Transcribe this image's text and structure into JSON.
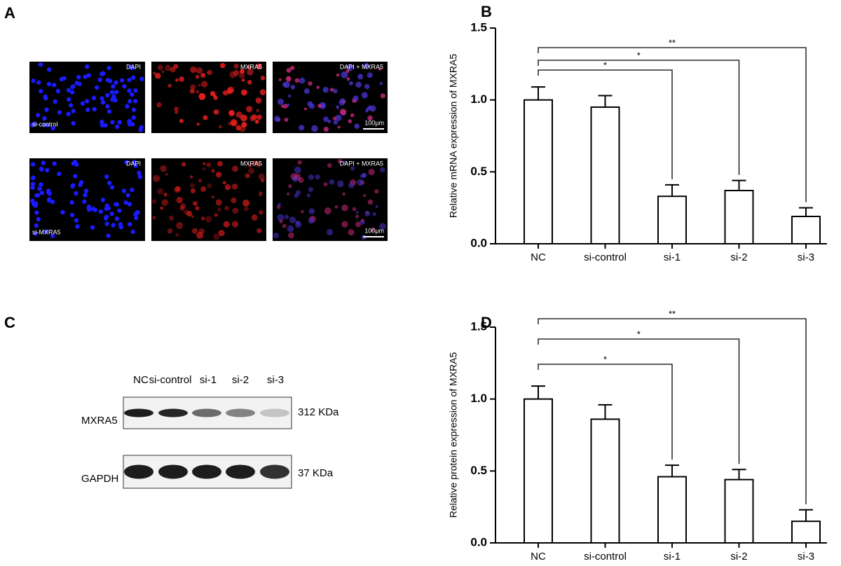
{
  "panel_a": {
    "label": "A",
    "columns": [
      "DAPI",
      "MXRA5",
      "DAPI + MXRA5"
    ],
    "rows": [
      "si-control",
      "si-MXRA5"
    ],
    "scale": "100µm"
  },
  "panel_c": {
    "label": "C",
    "lanes": [
      "NC",
      "si-control",
      "si-1",
      "si-2",
      "si-3"
    ],
    "proteins": [
      {
        "name": "MXRA5",
        "size": "312 KDa"
      },
      {
        "name": "GAPDH",
        "size": "37 KDa"
      }
    ]
  },
  "chart_data": [
    {
      "type": "bar",
      "panel": "B",
      "y_label": "Relative  mRNA expression of MXRA5",
      "categories": [
        "NC",
        "si-control",
        "si-1",
        "si-2",
        "si-3"
      ],
      "values": [
        1.0,
        0.95,
        0.33,
        0.37,
        0.19
      ],
      "errors": [
        0.09,
        0.08,
        0.08,
        0.07,
        0.06
      ],
      "color": "#ffffff",
      "ylim": [
        0,
        1.5
      ],
      "yticks": [
        {
          "value": 0,
          "label": "0.0"
        },
        {
          "value": 0.5,
          "label": "0.5"
        },
        {
          "value": 1,
          "label": "1.0"
        },
        {
          "value": 1.5,
          "label": "1.5"
        }
      ],
      "annotations": [
        {
          "from": "NC",
          "to": "si-1",
          "label": "*"
        },
        {
          "from": "NC",
          "to": "si-2",
          "label": "*"
        },
        {
          "from": "NC",
          "to": "si-3",
          "label": "**"
        }
      ]
    },
    {
      "type": "bar",
      "panel": "D",
      "y_label": "Relative protein expression of MXRA5",
      "categories": [
        "NC",
        "si-control",
        "si-1",
        "si-2",
        "si-3"
      ],
      "values": [
        1.0,
        0.86,
        0.46,
        0.44,
        0.15
      ],
      "errors": [
        0.09,
        0.1,
        0.08,
        0.07,
        0.08
      ],
      "color": "#ffffff",
      "ylim": [
        0,
        1.5
      ],
      "yticks": [
        {
          "value": 0,
          "label": "0.0"
        },
        {
          "value": 0.5,
          "label": "0.5"
        },
        {
          "value": 1,
          "label": "1.0"
        },
        {
          "value": 1.5,
          "label": "1.5"
        }
      ],
      "annotations": [
        {
          "from": "NC",
          "to": "si-1",
          "label": "*"
        },
        {
          "from": "NC",
          "to": "si-2",
          "label": "*"
        },
        {
          "from": "NC",
          "to": "si-3",
          "label": "**"
        }
      ]
    }
  ]
}
